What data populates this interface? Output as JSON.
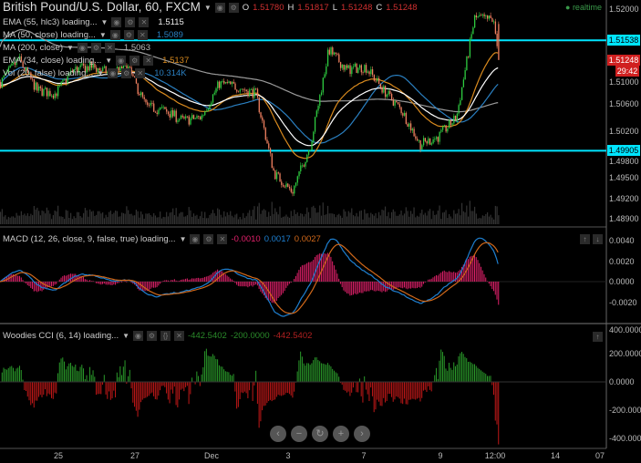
{
  "header": {
    "symbol_title": "British Pound/U.S. Dollar, 60, FXCM",
    "o_label": "O",
    "o": "1.51780",
    "h_label": "H",
    "h": "1.51817",
    "l_label": "L",
    "l": "1.51248",
    "c_label": "C",
    "c": "1.51248",
    "realtime": "realtime"
  },
  "indicators": [
    {
      "label": "EMA (55, hlc3) loading...",
      "value": "1.5115",
      "color": "#ffffff"
    },
    {
      "label": "MA (50, close) loading...",
      "value": "1.5089",
      "color": "#2a7fc0"
    },
    {
      "label": "MA (200, close)",
      "value": "1.5063",
      "color": "#9a9a9a"
    },
    {
      "label": "EMA (34, close) loading...",
      "value": "1.5137",
      "color": "#d98a1e"
    },
    {
      "label": "Vol (20, false) loading...",
      "value": "10.314K",
      "value_color": "#2a7fc0"
    }
  ],
  "macd": {
    "label": "MACD (12, 26, close, 9, false, true) loading...",
    "hist": "-0.0010",
    "macd": "0.0017",
    "signal": "0.0027",
    "colors": {
      "hist": "#e0206a",
      "macd": "#1e7fd0",
      "signal": "#d0681a"
    }
  },
  "cci": {
    "label": "Woodies CCI (6, 14) loading...",
    "v1": "-442.5402",
    "v2": "-200.0000",
    "v3": "-442.5402"
  },
  "price_axis": {
    "ticks": [
      "1.52000",
      "1.51000",
      "1.50600",
      "1.50200",
      "1.49800",
      "1.49500",
      "1.49200",
      "1.48900"
    ],
    "horizontal_lines": [
      "1.51538",
      "1.49905"
    ],
    "last_price": "1.51248",
    "countdown": "29:42",
    "line_color": "#00e5ff"
  },
  "macd_axis": {
    "ticks": [
      "0.0040",
      "0.0020",
      "0.0000",
      "-0.0020"
    ]
  },
  "cci_axis": {
    "ticks": [
      "400.0000",
      "200.0000",
      "0.0000",
      "-200.0000",
      "-400.0000"
    ]
  },
  "x_axis": {
    "ticks": [
      "25",
      "27",
      "Dec",
      "3",
      "7",
      "9",
      "12:00",
      "14",
      "07"
    ]
  },
  "nav_buttons": [
    "‹",
    "−",
    "↻",
    "+",
    "›"
  ],
  "chart_data": {
    "type": "candlestick",
    "title": "British Pound/U.S. Dollar, 60, FXCM",
    "timeframe": "60",
    "close_path_approx": [
      1.5092,
      1.5126,
      1.508,
      1.5075,
      1.511,
      1.5115,
      1.5105,
      1.5112,
      1.5055,
      1.505,
      1.5035,
      1.504,
      1.509,
      1.5085,
      1.5075,
      1.4957,
      1.493,
      1.5,
      1.514,
      1.511,
      1.5115,
      1.508,
      1.505,
      1.5,
      1.5011,
      1.504,
      1.5187,
      1.5184,
      1.5125
    ],
    "ylim": [
      1.4875,
      1.5213
    ],
    "colors": {
      "up": "#2ecc40",
      "down": "#f08060",
      "volume": "#333333"
    }
  }
}
